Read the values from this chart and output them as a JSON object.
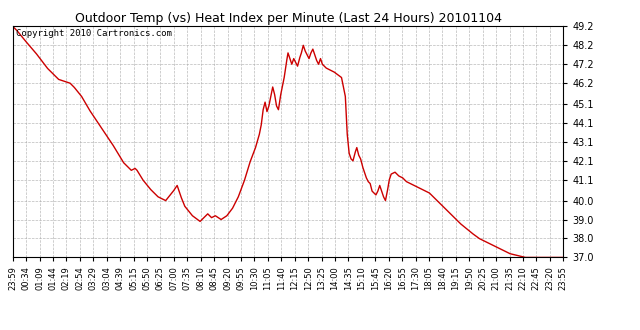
{
  "title": "Outdoor Temp (vs) Heat Index per Minute (Last 24 Hours) 20101104",
  "copyright_text": "Copyright 2010 Cartronics.com",
  "line_color": "#cc0000",
  "background_color": "#ffffff",
  "grid_color": "#aaaaaa",
  "ylim": [
    37.0,
    49.2
  ],
  "yticks": [
    37.0,
    38.0,
    39.0,
    40.0,
    41.1,
    42.1,
    43.1,
    44.1,
    45.1,
    46.2,
    47.2,
    48.2,
    49.2
  ],
  "xtick_labels": [
    "23:59",
    "00:34",
    "01:09",
    "01:44",
    "02:19",
    "02:54",
    "03:29",
    "03:04",
    "04:39",
    "05:15",
    "05:50",
    "06:25",
    "07:00",
    "07:35",
    "08:10",
    "08:45",
    "09:20",
    "09:55",
    "10:30",
    "11:05",
    "11:40",
    "12:15",
    "12:50",
    "13:25",
    "14:00",
    "14:35",
    "15:10",
    "15:45",
    "16:20",
    "16:55",
    "17:30",
    "18:05",
    "18:40",
    "19:15",
    "19:50",
    "20:25",
    "21:00",
    "21:35",
    "22:10",
    "22:45",
    "23:20",
    "23:55"
  ],
  "waypoints": [
    [
      0,
      49.2
    ],
    [
      10,
      49.0
    ],
    [
      30,
      48.5
    ],
    [
      60,
      47.8
    ],
    [
      90,
      47.0
    ],
    [
      120,
      46.4
    ],
    [
      150,
      46.2
    ],
    [
      160,
      46.0
    ],
    [
      180,
      45.5
    ],
    [
      200,
      44.8
    ],
    [
      230,
      43.9
    ],
    [
      260,
      43.0
    ],
    [
      290,
      42.0
    ],
    [
      310,
      41.6
    ],
    [
      320,
      41.7
    ],
    [
      325,
      41.6
    ],
    [
      340,
      41.1
    ],
    [
      360,
      40.6
    ],
    [
      380,
      40.2
    ],
    [
      400,
      40.0
    ],
    [
      420,
      40.5
    ],
    [
      430,
      40.8
    ],
    [
      440,
      40.2
    ],
    [
      450,
      39.7
    ],
    [
      470,
      39.2
    ],
    [
      490,
      38.9
    ],
    [
      500,
      39.1
    ],
    [
      510,
      39.3
    ],
    [
      520,
      39.1
    ],
    [
      530,
      39.2
    ],
    [
      545,
      39.0
    ],
    [
      560,
      39.2
    ],
    [
      575,
      39.6
    ],
    [
      590,
      40.2
    ],
    [
      605,
      41.0
    ],
    [
      620,
      42.0
    ],
    [
      635,
      42.8
    ],
    [
      645,
      43.5
    ],
    [
      650,
      44.0
    ],
    [
      655,
      44.8
    ],
    [
      660,
      45.2
    ],
    [
      665,
      44.7
    ],
    [
      670,
      45.0
    ],
    [
      675,
      45.5
    ],
    [
      680,
      46.0
    ],
    [
      685,
      45.6
    ],
    [
      690,
      45.0
    ],
    [
      695,
      44.8
    ],
    [
      700,
      45.5
    ],
    [
      710,
      46.5
    ],
    [
      715,
      47.2
    ],
    [
      720,
      47.8
    ],
    [
      725,
      47.5
    ],
    [
      730,
      47.2
    ],
    [
      735,
      47.5
    ],
    [
      740,
      47.3
    ],
    [
      745,
      47.1
    ],
    [
      750,
      47.5
    ],
    [
      755,
      47.8
    ],
    [
      760,
      48.2
    ],
    [
      765,
      47.9
    ],
    [
      770,
      47.7
    ],
    [
      775,
      47.5
    ],
    [
      780,
      47.8
    ],
    [
      785,
      48.0
    ],
    [
      790,
      47.7
    ],
    [
      795,
      47.4
    ],
    [
      800,
      47.2
    ],
    [
      805,
      47.5
    ],
    [
      810,
      47.2
    ],
    [
      820,
      47.0
    ],
    [
      840,
      46.8
    ],
    [
      860,
      46.5
    ],
    [
      870,
      45.5
    ],
    [
      875,
      43.5
    ],
    [
      880,
      42.5
    ],
    [
      885,
      42.2
    ],
    [
      890,
      42.1
    ],
    [
      895,
      42.5
    ],
    [
      900,
      42.8
    ],
    [
      905,
      42.4
    ],
    [
      910,
      42.2
    ],
    [
      915,
      41.8
    ],
    [
      920,
      41.5
    ],
    [
      925,
      41.2
    ],
    [
      930,
      41.0
    ],
    [
      935,
      40.9
    ],
    [
      940,
      40.5
    ],
    [
      950,
      40.3
    ],
    [
      955,
      40.5
    ],
    [
      960,
      40.8
    ],
    [
      965,
      40.5
    ],
    [
      970,
      40.2
    ],
    [
      975,
      40.0
    ],
    [
      980,
      40.5
    ],
    [
      985,
      41.1
    ],
    [
      990,
      41.4
    ],
    [
      1000,
      41.5
    ],
    [
      1010,
      41.3
    ],
    [
      1020,
      41.2
    ],
    [
      1030,
      41.0
    ],
    [
      1040,
      40.9
    ],
    [
      1050,
      40.8
    ],
    [
      1060,
      40.7
    ],
    [
      1070,
      40.6
    ],
    [
      1080,
      40.5
    ],
    [
      1090,
      40.4
    ],
    [
      1100,
      40.2
    ],
    [
      1120,
      39.8
    ],
    [
      1150,
      39.2
    ],
    [
      1170,
      38.8
    ],
    [
      1200,
      38.3
    ],
    [
      1220,
      38.0
    ],
    [
      1240,
      37.8
    ],
    [
      1260,
      37.6
    ],
    [
      1280,
      37.4
    ],
    [
      1300,
      37.2
    ],
    [
      1320,
      37.1
    ],
    [
      1340,
      37.0
    ],
    [
      1380,
      37.0
    ],
    [
      1440,
      37.0
    ]
  ]
}
